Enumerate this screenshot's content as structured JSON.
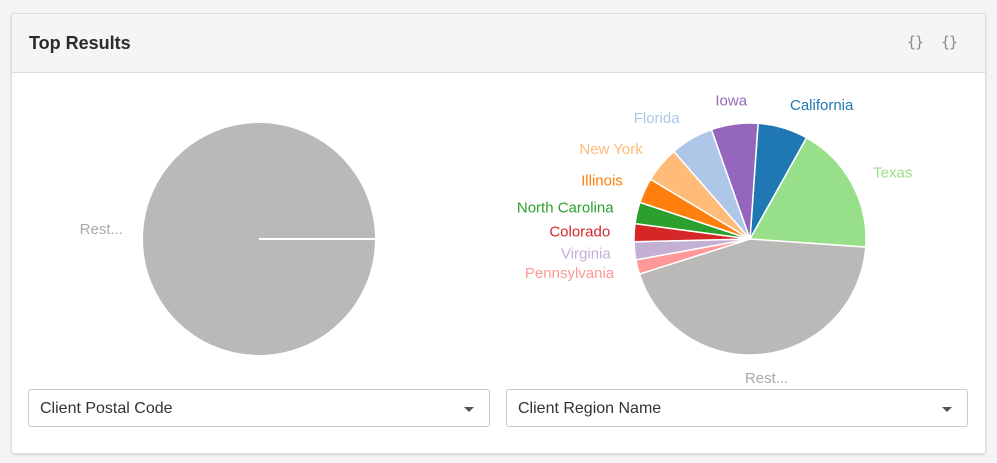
{
  "panel": {
    "title": "Top Results",
    "icons": [
      "code-braces-icon",
      "code-braces-icon"
    ]
  },
  "chart_data": [
    {
      "type": "pie",
      "title": "",
      "slices": [
        {
          "label": "Rest...",
          "value": 100,
          "color": "#bab9b7"
        }
      ]
    },
    {
      "type": "pie",
      "title": "",
      "slices": [
        {
          "label": "California",
          "value": 7.0,
          "color": "#1f77b4"
        },
        {
          "label": "Texas",
          "value": 18.0,
          "color": "#98df8a"
        },
        {
          "label": "Rest...",
          "value": 44.0,
          "color": "#bab9b7"
        },
        {
          "label": "Pennsylvania",
          "value": 2.0,
          "color": "#ff9896"
        },
        {
          "label": "Virginia",
          "value": 2.5,
          "color": "#c5b0d5"
        },
        {
          "label": "Colorado",
          "value": 2.5,
          "color": "#d62728"
        },
        {
          "label": "North Carolina",
          "value": 3.0,
          "color": "#2ca02c"
        },
        {
          "label": "Illinois",
          "value": 3.5,
          "color": "#ff7f0e"
        },
        {
          "label": "New York",
          "value": 5.0,
          "color": "#ffbb78"
        },
        {
          "label": "Florida",
          "value": 6.0,
          "color": "#aec7e8"
        },
        {
          "label": "Iowa",
          "value": 6.5,
          "color": "#9467bd"
        }
      ]
    }
  ],
  "selectors": [
    {
      "label": "Client Postal Code"
    },
    {
      "label": "Client Region Name"
    }
  ]
}
